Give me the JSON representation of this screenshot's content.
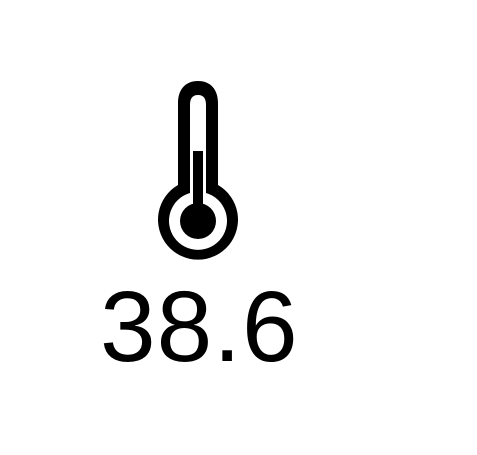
{
  "icon": {
    "name": "thermometer-icon",
    "color": "#000000",
    "level": 0.33
  },
  "temperature": {
    "value": "38.6"
  },
  "colors": {
    "background": "#ffffff",
    "foreground": "#000000"
  }
}
